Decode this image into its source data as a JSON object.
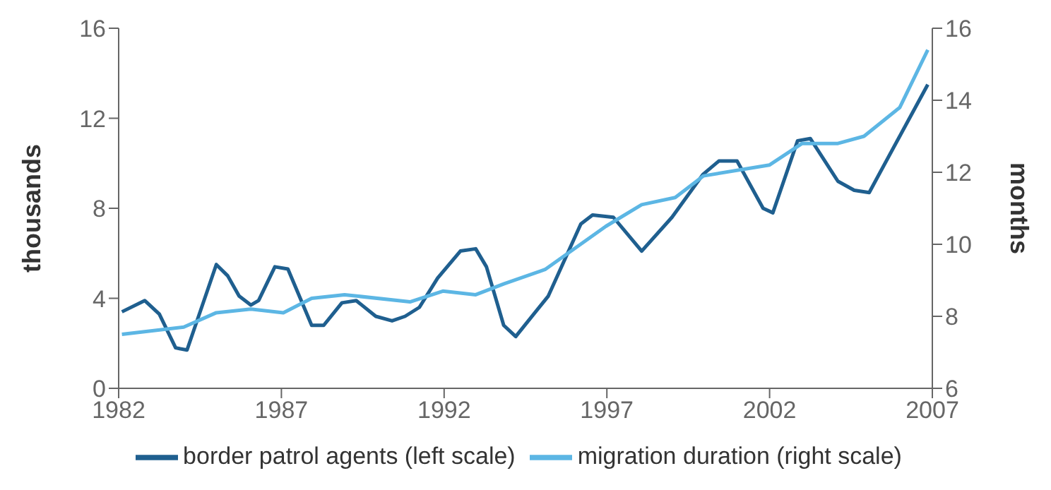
{
  "chart_data": {
    "type": "line",
    "ylabel": "thousands",
    "y2label": "months",
    "xlim": [
      1982,
      2007
    ],
    "xticks": [
      1982,
      1987,
      1992,
      1997,
      2002,
      2007
    ],
    "ylim": [
      0,
      16
    ],
    "yticks": [
      0,
      4,
      8,
      12,
      16
    ],
    "y2lim": [
      6,
      16
    ],
    "y2ticks": [
      6,
      8,
      10,
      12,
      14,
      16
    ],
    "grid": false,
    "legend": "bottom",
    "marker": "none",
    "line_style": "solid",
    "series": [
      {
        "name": "border patrol agents (left scale)",
        "color": "#1f5f8f",
        "axis": "y",
        "x": [
          1982.1,
          1982.8,
          1983.25,
          1983.75,
          1984.1,
          1985.0,
          1985.35,
          1985.7,
          1986.06,
          1986.3,
          1986.8,
          1987.2,
          1987.93,
          1988.3,
          1988.86,
          1989.3,
          1989.9,
          1990.4,
          1990.8,
          1991.24,
          1991.8,
          1992.5,
          1992.97,
          1993.3,
          1993.83,
          1994.2,
          1995.2,
          1996.2,
          1996.56,
          1997.2,
          1998.07,
          1999.0,
          1999.95,
          2000.44,
          2001.0,
          2001.8,
          2002.1,
          2002.86,
          2003.25,
          2004.1,
          2004.6,
          2005.06,
          2006.86
        ],
        "values": [
          3.4,
          3.9,
          3.3,
          1.8,
          1.7,
          5.5,
          5.0,
          4.1,
          3.7,
          3.9,
          5.4,
          5.3,
          2.8,
          2.8,
          3.8,
          3.9,
          3.2,
          3.0,
          3.2,
          3.6,
          4.9,
          6.1,
          6.2,
          5.4,
          2.8,
          2.3,
          4.1,
          7.3,
          7.7,
          7.6,
          6.1,
          7.6,
          9.5,
          10.1,
          10.1,
          8.0,
          7.8,
          11.0,
          11.1,
          9.2,
          8.8,
          8.7,
          13.5
        ]
      },
      {
        "name": "migration duration (right scale)",
        "color": "#5cb6e4",
        "axis": "y2",
        "x": [
          1982.1,
          1984.0,
          1985.0,
          1986.06,
          1987.06,
          1987.93,
          1988.94,
          1990.95,
          1991.96,
          1992.97,
          1993.83,
          1995.1,
          1996.97,
          1998.07,
          1999.1,
          1999.97,
          2001.99,
          2003.0,
          2004.1,
          2004.9,
          2006.0,
          2006.86
        ],
        "values": [
          7.5,
          7.7,
          8.1,
          8.2,
          8.1,
          8.5,
          8.6,
          8.4,
          8.7,
          8.6,
          8.9,
          9.3,
          10.5,
          11.1,
          11.3,
          11.9,
          12.2,
          12.8,
          12.8,
          13.0,
          13.8,
          15.4
        ]
      }
    ]
  }
}
